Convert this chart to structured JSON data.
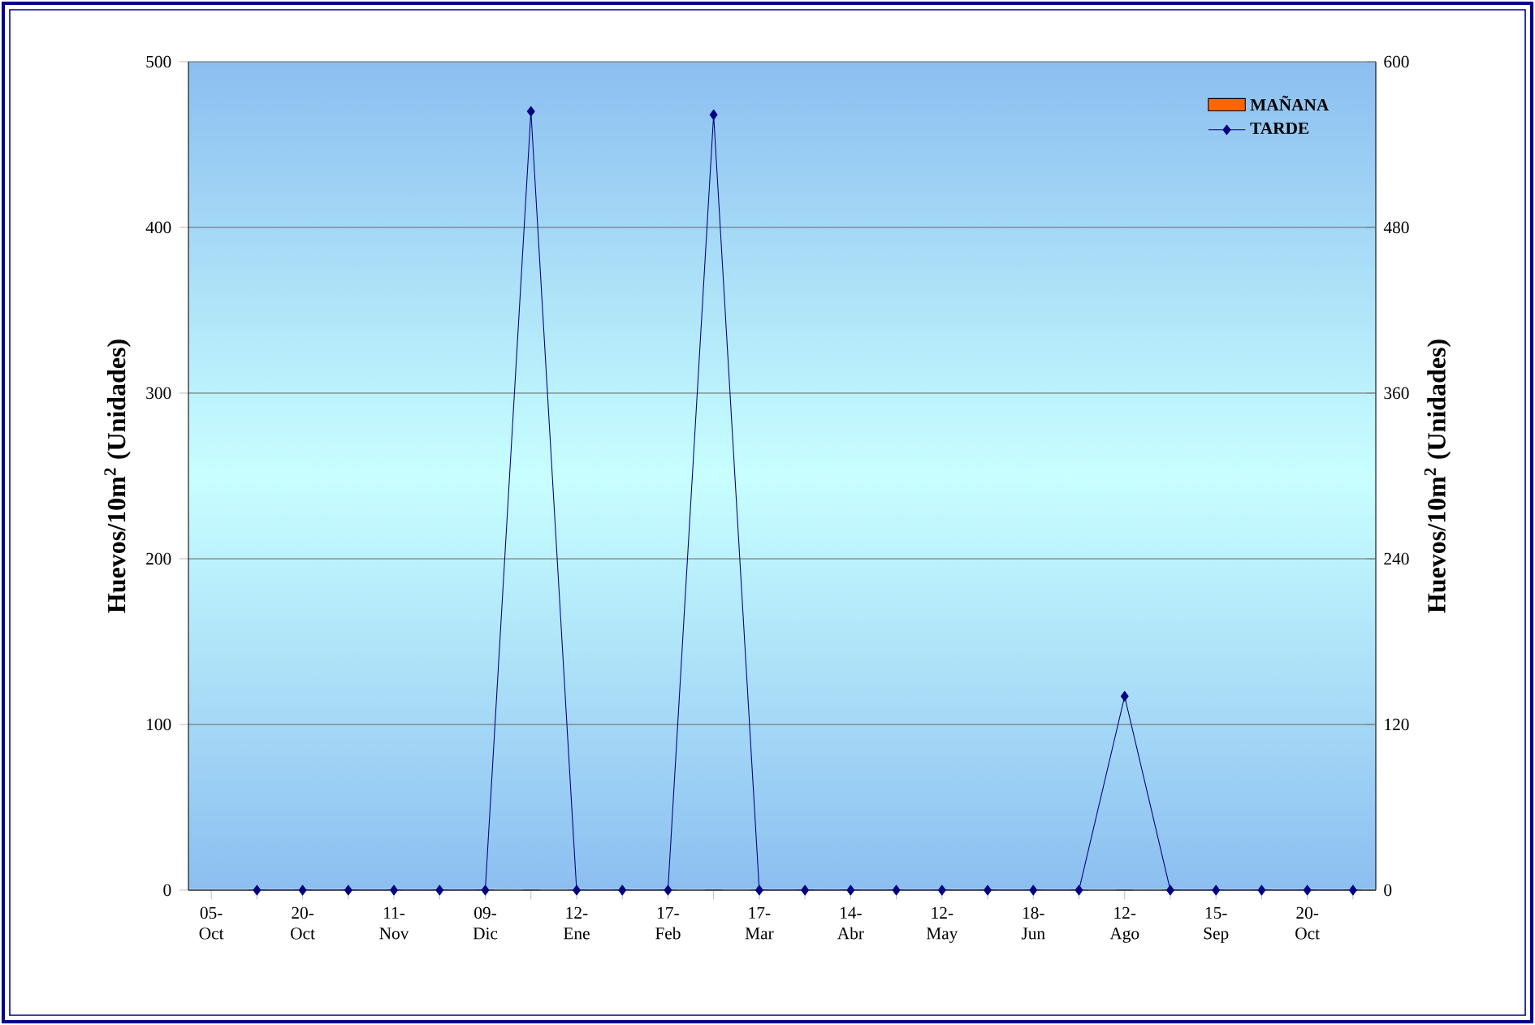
{
  "chart_data": {
    "type": "line",
    "categories": [
      "05- Oct",
      null,
      "20- Oct",
      null,
      "11- Nov",
      null,
      "09- Dic",
      null,
      "12- Ene",
      null,
      "17- Feb",
      null,
      "17- Mar",
      null,
      "14- Abr",
      null,
      "12- May",
      null,
      "18- Jun",
      null,
      "12- Ago",
      null,
      "15- Sep",
      null,
      "20- Oct",
      null
    ],
    "series": [
      {
        "name": "MAÑANA",
        "type": "bar",
        "axis": "y2",
        "color": "#ff6600",
        "values": [
          null,
          0,
          0,
          0,
          0,
          0,
          0,
          0,
          0,
          0,
          0,
          0,
          0,
          0,
          0,
          0,
          0,
          0,
          0,
          0,
          0,
          0,
          0,
          0,
          0,
          0
        ]
      },
      {
        "name": "TARDE",
        "axis": "y",
        "color": "#000080",
        "marker": "diamond",
        "line_style": "solid",
        "values": [
          null,
          0,
          0,
          0,
          0,
          0,
          0,
          470,
          0,
          0,
          0,
          468,
          0,
          0,
          0,
          0,
          0,
          0,
          0,
          0,
          117,
          0,
          0,
          0,
          0,
          0
        ]
      }
    ],
    "ylabel": "Huevos/10m$^{2}$ (Unidades)",
    "y2label": "Huevos/10m$^{2}$ (Unidades)",
    "ylim": [
      0,
      500
    ],
    "yticks": [
      0,
      100,
      200,
      300,
      400,
      500
    ],
    "y2lim": [
      0,
      600
    ],
    "y2ticks": [
      0,
      120,
      240,
      360,
      480,
      600
    ],
    "grid": "y",
    "legend": "top right"
  }
}
